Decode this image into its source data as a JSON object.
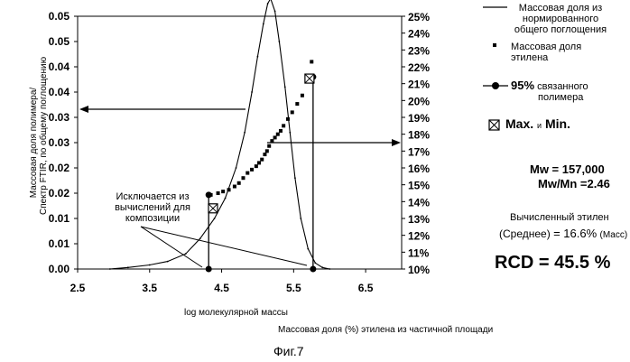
{
  "chart_data": {
    "type": "line",
    "xlabel": "log молекулярной массы",
    "ylabel_line1": "Массовая доля полимера/",
    "ylabel_line2": "Спектр FTIR, по общему поглощению",
    "xlim": [
      2.5,
      7.0
    ],
    "ylim": [
      0,
      0.05
    ],
    "y2lim": [
      10,
      25
    ],
    "x_ticks": [
      "2.5",
      "3.5",
      "4.5",
      "5.5",
      "6.5"
    ],
    "y_ticks": [
      "0.00",
      "0.01",
      "0.01",
      "0.02",
      "0.02",
      "0.03",
      "0.03",
      "0.04",
      "0.04",
      "0.05",
      "0.05"
    ],
    "y2_ticks": [
      "10%",
      "11%",
      "12%",
      "13%",
      "14%",
      "15%",
      "16%",
      "17%",
      "18%",
      "19%",
      "20%",
      "21%",
      "22%",
      "23%",
      "24%",
      "25%"
    ],
    "series": [
      {
        "name": "Массовая доля из нормированного общего поглощения",
        "style": "line",
        "x": [
          2.95,
          3.2,
          3.5,
          3.75,
          4.0,
          4.2,
          4.4,
          4.55,
          4.7,
          4.82,
          4.92,
          5.0,
          5.08,
          5.14,
          5.18,
          5.24,
          5.3,
          5.38,
          5.45,
          5.52,
          5.6,
          5.7,
          5.8,
          5.9,
          6.0
        ],
        "y": [
          0.0,
          0.0003,
          0.0008,
          0.0015,
          0.003,
          0.006,
          0.01,
          0.014,
          0.02,
          0.027,
          0.035,
          0.042,
          0.0485,
          0.0525,
          0.0535,
          0.051,
          0.045,
          0.036,
          0.027,
          0.018,
          0.01,
          0.004,
          0.0012,
          0.0003,
          0.0
        ]
      },
      {
        "name": "Массовая доля этилена",
        "style": "points",
        "axis": "right",
        "x": [
          4.35,
          4.45,
          4.52,
          4.6,
          4.68,
          4.74,
          4.8,
          4.86,
          4.92,
          4.98,
          5.02,
          5.06,
          5.1,
          5.13,
          5.16,
          5.2,
          5.24,
          5.28,
          5.32,
          5.36,
          5.42,
          5.48,
          5.55,
          5.62,
          5.7,
          5.75
        ],
        "y": [
          14.4,
          14.5,
          14.6,
          14.7,
          14.9,
          15.1,
          15.4,
          15.7,
          15.9,
          16.1,
          16.3,
          16.5,
          16.8,
          17.0,
          17.3,
          17.6,
          17.8,
          18.0,
          18.2,
          18.5,
          18.9,
          19.3,
          19.8,
          20.3,
          21.3,
          22.3
        ]
      },
      {
        "name": "95% связанного полимера",
        "style": "markers",
        "axis": "right",
        "x": [
          4.32,
          4.32,
          5.77,
          5.77
        ],
        "y": [
          10.0,
          14.4,
          10.0,
          21.4
        ]
      },
      {
        "name": "Max. и Min.",
        "style": "boxes",
        "axis": "right",
        "x": [
          4.38,
          5.72
        ],
        "y": [
          13.6,
          21.3
        ]
      }
    ],
    "legend": {
      "s1_line1": "Массовая доля из",
      "s1_line2": "нормированного",
      "s1_line3": "общего поглощения",
      "s2_line1": "Массовая доля",
      "s2_line2": "этилена",
      "s3_pct": "95%",
      "s3_line1": "связанного",
      "s3_line2": "полимера",
      "s4_max": "Max.",
      "s4_and": "и",
      "s4_min": "Min."
    },
    "annotations": {
      "excluded_line1": "Исключается из",
      "excluded_line2": "вычислений для",
      "excluded_line3": "композиции"
    }
  },
  "stats": {
    "mw": "Mw = 157,000",
    "mwmn": "Mw/Mn =2.46",
    "calc_line1": "Вычисленный этилен",
    "calc_avg": "(Среднее)",
    "calc_eq": "= 16.6%",
    "calc_unit": "(Масс)",
    "rcd": "RCD = 45.5 %"
  },
  "bottom_caption": "Массовая доля (%) этилена из частичной площади",
  "figure_label": "Фиг.7"
}
